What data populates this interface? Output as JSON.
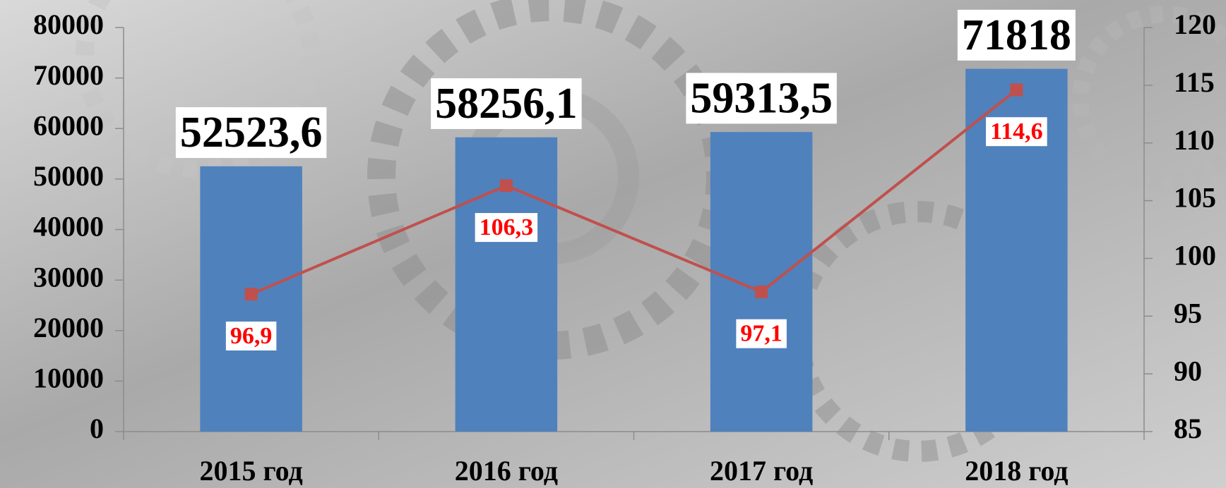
{
  "chart_data": {
    "type": "bar",
    "categories": [
      "2015 год",
      "2016 год",
      "2017 год",
      "2018 год"
    ],
    "series": [
      {
        "type": "bar",
        "color": "#4f81bd",
        "values": [
          52523.6,
          58256.1,
          59313.5,
          71818
        ],
        "value_labels": [
          "52523,6",
          "58256,1",
          "59313,5",
          "71818"
        ]
      },
      {
        "type": "line",
        "axis": "y2",
        "color": "#c0504d",
        "values": [
          96.9,
          106.3,
          97.1,
          114.6
        ],
        "value_labels": [
          "96,9",
          "106,3",
          "97,1",
          "114,6"
        ]
      }
    ],
    "ylim": [
      0,
      80000
    ],
    "yticks": [
      0,
      10000,
      20000,
      30000,
      40000,
      50000,
      60000,
      70000,
      80000
    ],
    "y2lim": [
      85,
      120
    ],
    "y2ticks": [
      85,
      90,
      95,
      100,
      105,
      110,
      115,
      120
    ],
    "grid": false
  }
}
